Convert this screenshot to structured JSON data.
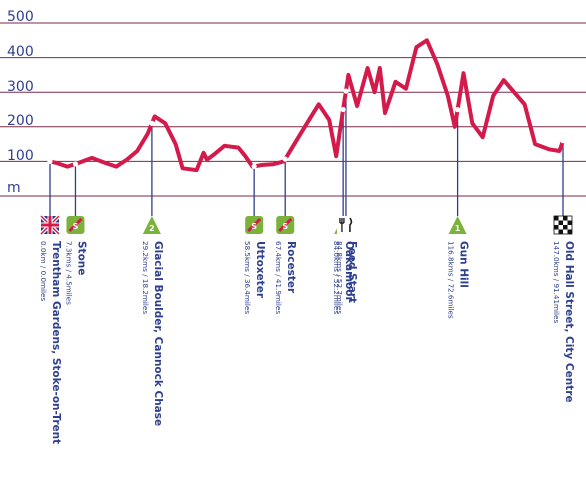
{
  "chart_data": {
    "type": "line",
    "ylabel": "m",
    "y_ticks": [
      "500",
      "400",
      "300",
      "200",
      "100"
    ],
    "ylim": [
      0,
      500
    ],
    "xlim": [
      0,
      147
    ],
    "grid": true,
    "colors": {
      "line": "#d4194b",
      "grid": "#7b2a4a",
      "text": "#2e3f8f",
      "marker": "#2e3f8f"
    },
    "series": [
      {
        "values": [
          [
            0,
            100
          ],
          [
            2,
            95
          ],
          [
            5,
            85
          ],
          [
            8,
            95
          ],
          [
            12,
            110
          ],
          [
            16,
            95
          ],
          [
            19,
            85
          ],
          [
            22,
            105
          ],
          [
            25,
            130
          ],
          [
            28,
            180
          ],
          [
            30,
            230
          ],
          [
            33,
            210
          ],
          [
            36,
            150
          ],
          [
            38,
            80
          ],
          [
            42,
            75
          ],
          [
            44,
            125
          ],
          [
            45,
            105
          ],
          [
            47,
            120
          ],
          [
            50,
            145
          ],
          [
            54,
            140
          ],
          [
            56,
            115
          ],
          [
            58,
            85
          ],
          [
            61,
            90
          ],
          [
            64,
            92
          ],
          [
            67,
            100
          ],
          [
            70,
            150
          ],
          [
            73,
            200
          ],
          [
            77,
            265
          ],
          [
            80,
            220
          ],
          [
            82,
            115
          ],
          [
            84,
            250
          ],
          [
            85.5,
            350
          ],
          [
            88,
            260
          ],
          [
            91,
            370
          ],
          [
            93,
            300
          ],
          [
            94.5,
            370
          ],
          [
            96,
            240
          ],
          [
            99,
            330
          ],
          [
            102,
            310
          ],
          [
            104,
            390
          ],
          [
            105,
            430
          ],
          [
            108,
            450
          ],
          [
            111,
            380
          ],
          [
            114,
            290
          ],
          [
            116,
            200
          ],
          [
            118.5,
            355
          ],
          [
            121,
            210
          ],
          [
            124,
            170
          ],
          [
            127,
            290
          ],
          [
            130,
            335
          ],
          [
            133,
            300
          ],
          [
            136,
            265
          ],
          [
            139,
            150
          ],
          [
            143,
            135
          ],
          [
            146,
            130
          ],
          [
            147,
            160
          ]
        ]
      }
    ],
    "points": [
      {
        "name": "Trentham Gardens, Stoke-on-Trent",
        "distance": "0.0km / 0.0miles",
        "x": 0,
        "icon": "union-flag-icon",
        "badge": ""
      },
      {
        "name": "Stone",
        "distance": "7.3kms / 4.5miles",
        "x": 7.3,
        "icon": "sprint-icon",
        "badge": "S"
      },
      {
        "name": "Glacial Boulder, Cannock Chase",
        "distance": "29.2kms / 18.2miles",
        "x": 29.2,
        "icon": "climb-icon",
        "badge": "2"
      },
      {
        "name": "Uttoxeter",
        "distance": "58.5kms / 36.4miles",
        "x": 58.5,
        "icon": "sprint-icon",
        "badge": "S"
      },
      {
        "name": "Rocester",
        "distance": "67.4kms / 41.9miles",
        "x": 67.4,
        "icon": "sprint-icon",
        "badge": "S"
      },
      {
        "name": "Oakamoor",
        "distance": "84.0kms / 52.2miles",
        "x": 84.0,
        "icon": "climb-icon",
        "badge": "2"
      },
      {
        "name": "Feed Start",
        "distance": "84.8kms / 52.7miles",
        "x": 84.8,
        "icon": "fork-knife-icon",
        "badge": ""
      },
      {
        "name": "Gun Hill",
        "distance": "116.8kms / 72.6miles",
        "x": 116.8,
        "icon": "climb-icon",
        "badge": "1"
      },
      {
        "name": "Old Hall Street, City Centre",
        "distance": "147.0kms / 91.41miles",
        "x": 147.0,
        "icon": "checkered-flag-icon",
        "badge": ""
      }
    ]
  }
}
